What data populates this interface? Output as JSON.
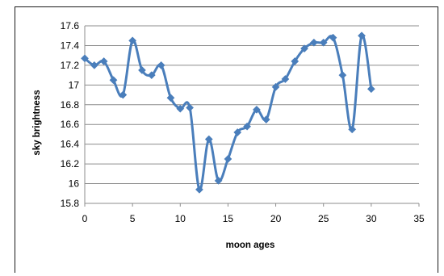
{
  "chart_data": {
    "type": "line",
    "title": "",
    "xlabel": "moon ages",
    "ylabel": "sky brightness",
    "xlim": [
      0,
      35
    ],
    "ylim": [
      15.8,
      17.6
    ],
    "xticks": [
      "0",
      "5",
      "10",
      "15",
      "20",
      "25",
      "30",
      "35"
    ],
    "yticks": [
      "15.8",
      "16",
      "16.2",
      "16.4",
      "16.6",
      "16.8",
      "17",
      "17.2",
      "17.4",
      "17.6"
    ],
    "grid": "horizontal",
    "legend": "none",
    "series": [
      {
        "color": "#4a7ebb",
        "marker": "diamond",
        "smooth": true,
        "x": [
          0,
          1,
          2,
          3,
          4,
          5,
          6,
          7,
          8,
          9,
          10,
          11,
          12,
          13,
          14,
          15,
          16,
          17,
          18,
          19,
          20,
          21,
          22,
          23,
          24,
          25,
          26,
          27,
          28,
          29,
          30
        ],
        "y": [
          17.27,
          17.2,
          17.24,
          17.05,
          16.9,
          17.45,
          17.15,
          17.1,
          17.2,
          16.87,
          16.76,
          16.77,
          15.94,
          16.45,
          16.03,
          16.25,
          16.52,
          16.58,
          16.75,
          16.65,
          16.98,
          17.06,
          17.24,
          17.37,
          17.43,
          17.43,
          17.48,
          17.1,
          16.55,
          17.5,
          16.96
        ]
      }
    ]
  }
}
